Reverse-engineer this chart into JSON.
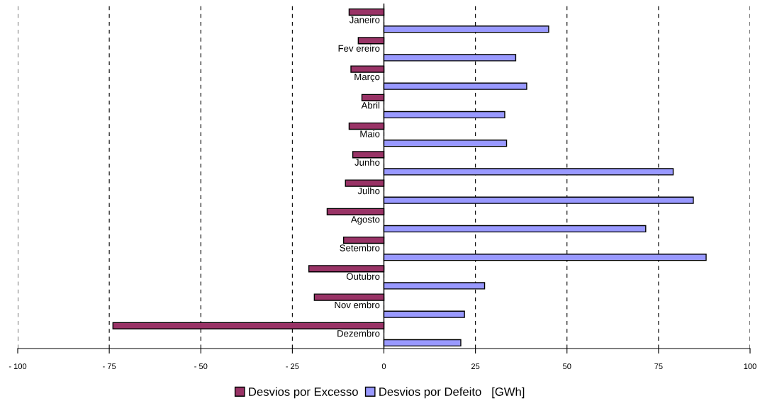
{
  "chart_data": {
    "type": "bar",
    "orientation": "horizontal",
    "categories": [
      "Janeiro",
      "Fev ereiro",
      "Março",
      "Abril",
      "Maio",
      "Junho",
      "Julho",
      "Agosto",
      "Setembro",
      "Outubro",
      "Nov embro",
      "Dezembro"
    ],
    "series": [
      {
        "name": "Desvios por Excesso",
        "color": "#993366",
        "values": [
          -9.5,
          -7,
          -9,
          -6,
          -9.5,
          -8.5,
          -10.5,
          -15.5,
          -11,
          -20.5,
          -19,
          -74
        ]
      },
      {
        "name": "Desvios por Defeito   [GWh]",
        "color": "#9999ff",
        "values": [
          45,
          36,
          39,
          33,
          33.5,
          79,
          84.5,
          71.5,
          88,
          27.5,
          22,
          21
        ]
      }
    ],
    "xlim": [
      -100,
      100
    ],
    "xticks": [
      {
        "value": -100,
        "label": "- 100"
      },
      {
        "value": -75,
        "label": "- 75"
      },
      {
        "value": -50,
        "label": "- 50"
      },
      {
        "value": -25,
        "label": "- 25"
      },
      0,
      25,
      50,
      75,
      100
    ],
    "grid": "x",
    "legend": "bottom"
  }
}
